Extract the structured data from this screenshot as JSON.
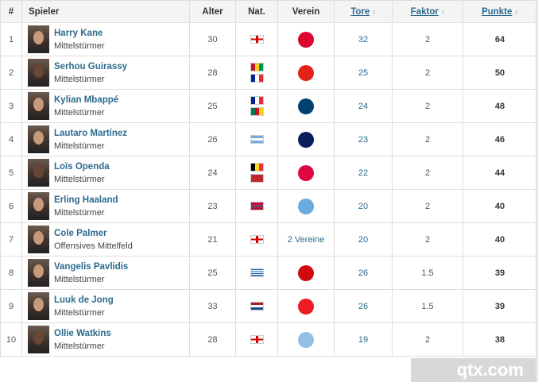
{
  "headers": {
    "rank": "#",
    "player": "Spieler",
    "age": "Alter",
    "nat": "Nat.",
    "club": "Verein",
    "goals": "Tore",
    "factor": "Faktor",
    "points": "Punkte",
    "sort_icon": "↕"
  },
  "rows": [
    {
      "rank": "1",
      "name": "Harry Kane",
      "pos": "Mittelstürmer",
      "age": "30",
      "flags": [
        "eng"
      ],
      "club": "bayern",
      "club_color": "#dc052d",
      "goals": "32",
      "factor": "2",
      "points": "64"
    },
    {
      "rank": "2",
      "name": "Serhou Guirassy",
      "pos": "Mittelstürmer",
      "age": "28",
      "flags": [
        "gin",
        "fra"
      ],
      "club": "stuttgart",
      "club_color": "#e32219",
      "goals": "25",
      "factor": "2",
      "points": "50"
    },
    {
      "rank": "3",
      "name": "Kylian Mbappé",
      "pos": "Mittelstürmer",
      "age": "25",
      "flags": [
        "fra",
        "cmr"
      ],
      "club": "psg",
      "club_color": "#004170",
      "goals": "24",
      "factor": "2",
      "points": "48"
    },
    {
      "rank": "4",
      "name": "Lautaro Martínez",
      "pos": "Mittelstürmer",
      "age": "26",
      "flags": [
        "arg"
      ],
      "club": "inter",
      "club_color": "#0a1e5e",
      "goals": "23",
      "factor": "2",
      "points": "46"
    },
    {
      "rank": "5",
      "name": "Loïs Openda",
      "pos": "Mittelstürmer",
      "age": "24",
      "flags": [
        "bel",
        "cod"
      ],
      "club": "leipzig",
      "club_color": "#dd0741",
      "goals": "22",
      "factor": "2",
      "points": "44"
    },
    {
      "rank": "6",
      "name": "Erling Haaland",
      "pos": "Mittelstürmer",
      "age": "23",
      "flags": [
        "nor"
      ],
      "club": "man-city",
      "club_color": "#6cabdd",
      "goals": "20",
      "factor": "2",
      "points": "40"
    },
    {
      "rank": "7",
      "name": "Cole Palmer",
      "pos": "Offensives Mittelfeld",
      "age": "21",
      "flags": [
        "eng"
      ],
      "club_text": "2 Vereine",
      "goals": "20",
      "factor": "2",
      "points": "40"
    },
    {
      "rank": "8",
      "name": "Vangelis Pavlidis",
      "pos": "Mittelstürmer",
      "age": "25",
      "flags": [
        "gre"
      ],
      "club": "az-alkmaar",
      "club_color": "#d10a11",
      "goals": "26",
      "factor": "1.5",
      "points": "39"
    },
    {
      "rank": "9",
      "name": "Luuk de Jong",
      "pos": "Mittelstürmer",
      "age": "33",
      "flags": [
        "ned"
      ],
      "club": "psv",
      "club_color": "#ed1c24",
      "goals": "26",
      "factor": "1.5",
      "points": "39"
    },
    {
      "rank": "10",
      "name": "Ollie Watkins",
      "pos": "Mittelstürmer",
      "age": "28",
      "flags": [
        "eng"
      ],
      "club": "aston-villa",
      "club_color": "#95bfe5",
      "goals": "19",
      "factor": "2",
      "points": "38"
    }
  ],
  "watermark": "qtx.com"
}
